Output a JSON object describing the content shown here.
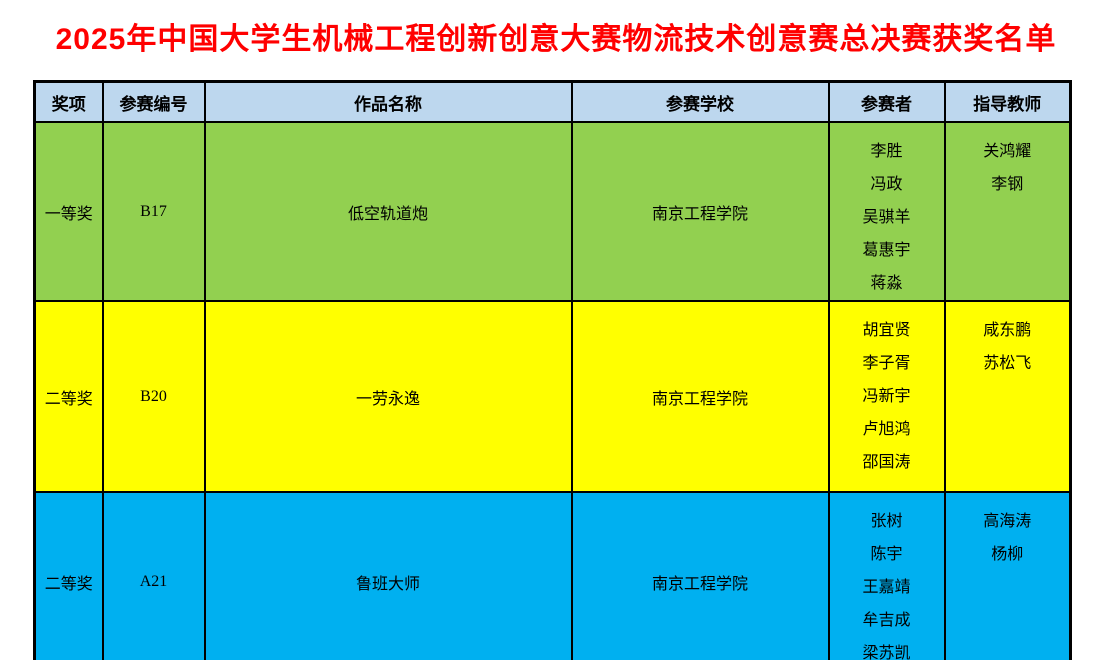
{
  "page": {
    "title": "2025年中国大学生机械工程创新创意大赛物流技术创意赛总决赛获奖名单",
    "title_color": "#FF0000",
    "background_color": "#FFFFFF"
  },
  "table": {
    "header": {
      "bg_color": "#BDD7EE",
      "text_color": "#000000",
      "columns": [
        "奖项",
        "参赛编号",
        "作品名称",
        "参赛学校",
        "参赛者",
        "指导教师"
      ]
    },
    "border_color": "#000000",
    "rows": [
      {
        "award": "一等奖",
        "entry_no": "B17",
        "work_name": "低空轨道炮",
        "school": "南京工程学院",
        "participants": [
          "李胜",
          "冯政",
          "吴骐羊",
          "葛惠宇",
          "蒋淼"
        ],
        "advisors": [
          "关鸿耀",
          "李钢"
        ],
        "bg_color": "#92D050"
      },
      {
        "award": "二等奖",
        "entry_no": "B20",
        "work_name": "一劳永逸",
        "school": "南京工程学院",
        "participants": [
          "胡宜贤",
          "李子胥",
          "冯新宇",
          "卢旭鸿",
          "邵国涛"
        ],
        "advisors": [
          "咸东鹏",
          "苏松飞"
        ],
        "bg_color": "#FFFF00"
      },
      {
        "award": "二等奖",
        "entry_no": "A21",
        "work_name": "鲁班大师",
        "school": "南京工程学院",
        "participants": [
          "张树",
          "陈宇",
          "王嘉靖",
          "牟吉成",
          "梁苏凯"
        ],
        "advisors": [
          "高海涛",
          "杨柳"
        ],
        "bg_color": "#00B0F0"
      }
    ]
  }
}
